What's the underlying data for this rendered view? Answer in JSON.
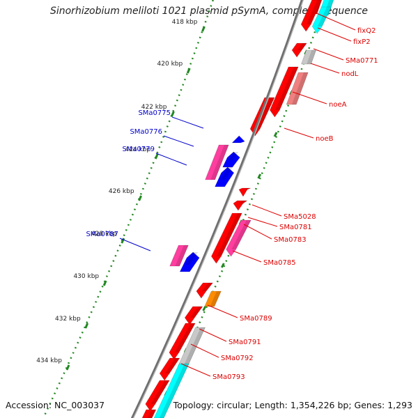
{
  "title": "Sinorhizobium meliloti 1021 plasmid pSymA, complete sequence",
  "footer": {
    "accession": "Accession: NC_003037",
    "topology": "Topology: circular; Length: 1,354,226 bp; Genes: 1,293"
  },
  "colors": {
    "backbone": "#888888",
    "ticks": "#228822",
    "red_gene": "#ff0000",
    "pink_gene": "#ff3ea0",
    "blue_gene": "#0000ff",
    "cyan_gene": "#00ffff",
    "grey_gene": "#c8c8c8",
    "lightred_gene": "#f08080",
    "orange_gene": "#ff8c00",
    "right_label": "#dd0000",
    "left_label": "#0000cc"
  },
  "scale_labels": [
    "418 kbp",
    "420 kbp",
    "422 kbp",
    "424 kbp",
    "426 kbp",
    "428 kbp",
    "430 kbp",
    "432 kbp",
    "434 kbp"
  ],
  "left_labels": [
    "SMa0775",
    "SMa0776",
    "SMa0779",
    "SMa0787"
  ],
  "right_labels": [
    "fixQ2",
    "fixP2",
    "SMa0771",
    "nodL",
    "noeA",
    "noeB",
    "SMa5028",
    "SMa0781",
    "SMa0783",
    "SMa0785",
    "SMa0789",
    "SMa0791",
    "SMa0792",
    "SMa0793"
  ]
}
